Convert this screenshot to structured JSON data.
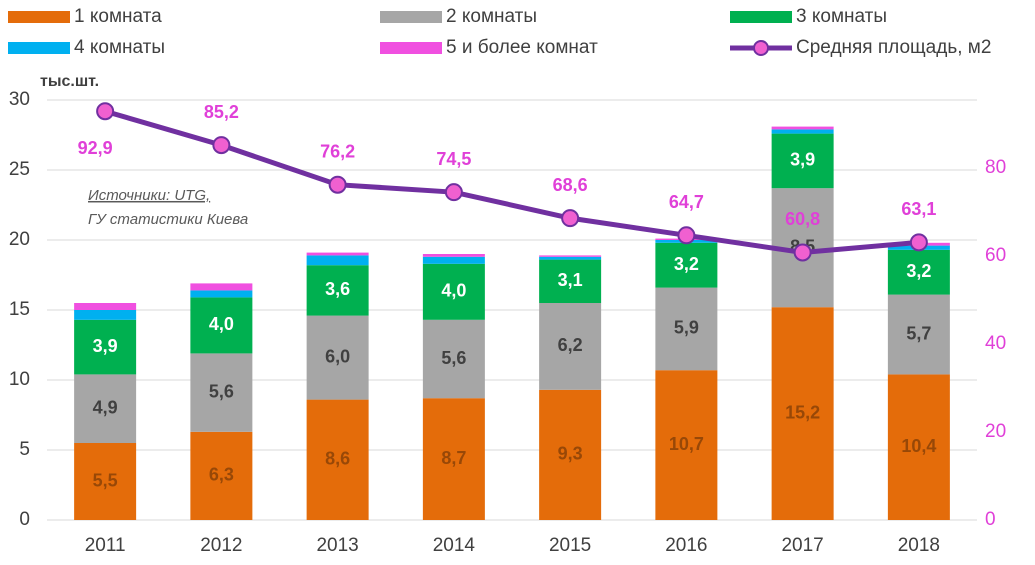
{
  "chart_data": {
    "type": "bar",
    "y_label": "тыс.шт.",
    "annotation": [
      "Источники: UTG,",
      "ГУ статистики Киева"
    ],
    "categories": [
      "2011",
      "2012",
      "2013",
      "2014",
      "2015",
      "2016",
      "2017",
      "2018"
    ],
    "stacked": true,
    "series": [
      {
        "name": "1 комната",
        "color": "#e46c0a",
        "values": [
          5.5,
          6.3,
          8.6,
          8.7,
          9.3,
          10.7,
          15.2,
          10.4
        ],
        "value_labels": [
          "5,5",
          "6,3",
          "8,6",
          "8,7",
          "9,3",
          "10,7",
          "15,2",
          "10,4"
        ],
        "label_color": "#984807"
      },
      {
        "name": "2 комнаты",
        "color": "#a6a6a6",
        "values": [
          4.9,
          5.6,
          6.0,
          5.6,
          6.2,
          5.9,
          8.5,
          5.7
        ],
        "value_labels": [
          "4,9",
          "5,6",
          "6,0",
          "5,6",
          "6,2",
          "5,9",
          "8,5",
          "5,7"
        ],
        "label_color": "#404040"
      },
      {
        "name": "3 комнаты",
        "color": "#00b050",
        "values": [
          3.9,
          4.0,
          3.6,
          4.0,
          3.1,
          3.2,
          3.9,
          3.2
        ],
        "value_labels": [
          "3,9",
          "4,0",
          "3,6",
          "4,0",
          "3,1",
          "3,2",
          "3,9",
          "3,2"
        ],
        "label_color": "#ffffff"
      },
      {
        "name": "4 комнаты",
        "color": "#00b0f0",
        "values": [
          0.7,
          0.5,
          0.7,
          0.5,
          0.2,
          0.2,
          0.3,
          0.3
        ]
      },
      {
        "name": "5 и более комнат",
        "color": "#f050e0",
        "values": [
          0.5,
          0.5,
          0.2,
          0.2,
          0.1,
          0.1,
          0.2,
          0.2
        ]
      },
      {
        "name": "Средняя площадь, м2",
        "type": "line",
        "axis": "y2",
        "color": "#7030a0",
        "marker_color": "#f060d0",
        "values": [
          92.9,
          85.2,
          76.2,
          74.5,
          68.6,
          64.7,
          60.8,
          63.1
        ],
        "value_labels": [
          "92,9",
          "85,2",
          "76,2",
          "74,5",
          "68,6",
          "64,7",
          "60,8",
          "63,1"
        ],
        "label_color": "#e040d8"
      }
    ],
    "ylim": [
      0,
      30
    ],
    "yticks": [
      0,
      5,
      10,
      15,
      20,
      25,
      30
    ],
    "y2lim": [
      0,
      95.45
    ],
    "y2ticks": [
      0,
      20,
      40,
      60,
      80
    ],
    "y2_color": "#e040d8",
    "grid": true,
    "legend": "top"
  }
}
